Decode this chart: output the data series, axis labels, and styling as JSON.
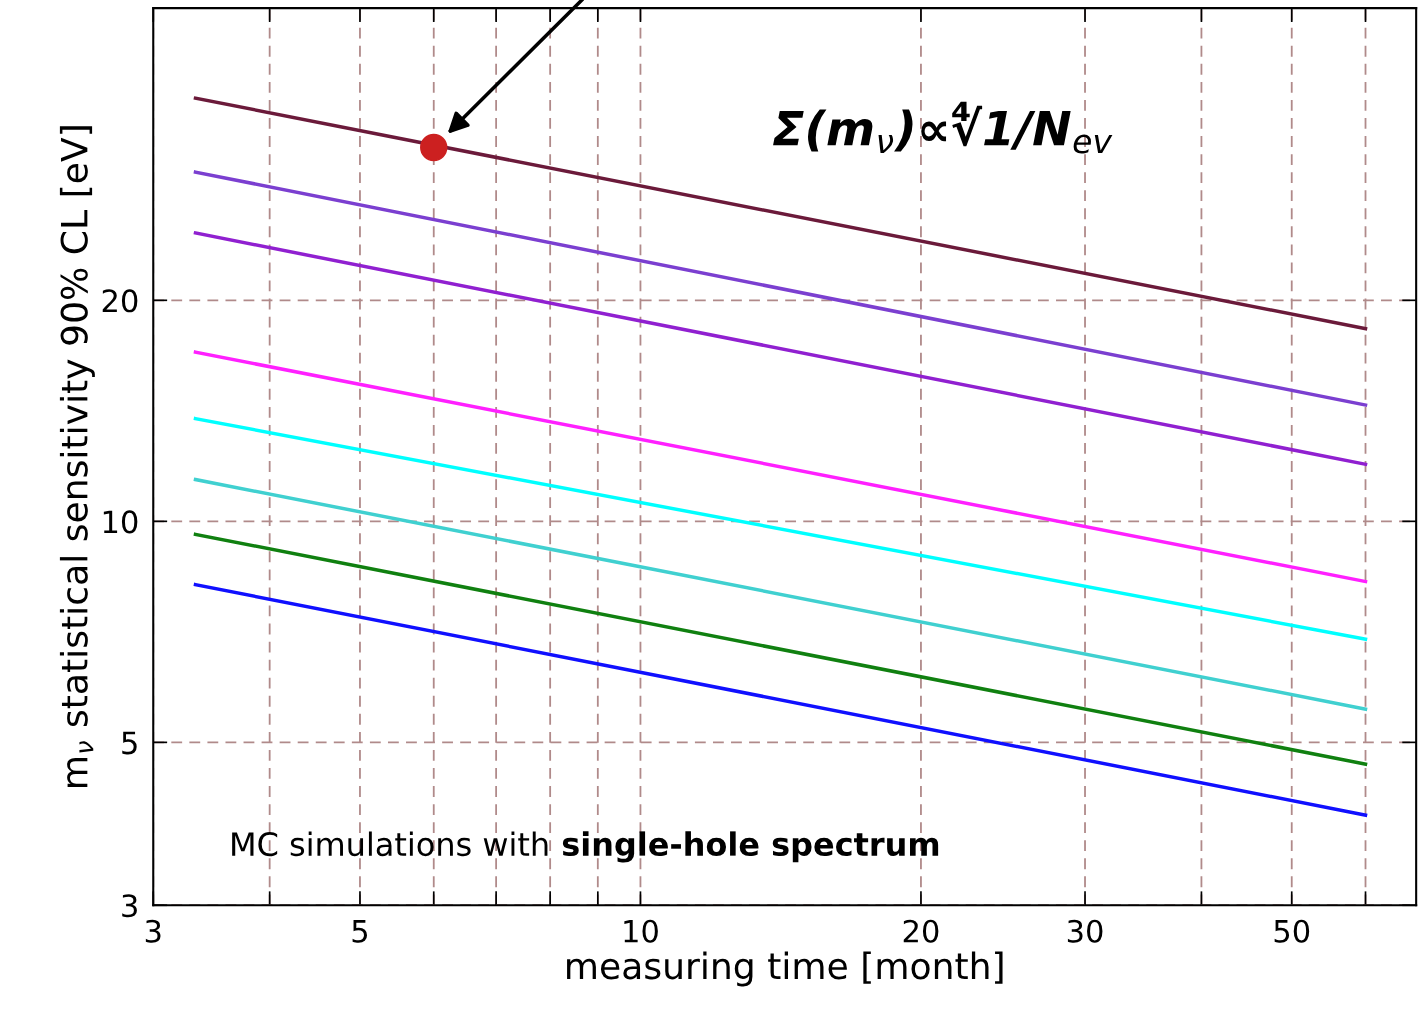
{
  "chart_data": {
    "type": "line",
    "xlabel": "measuring time [month]",
    "ylabel": "m$_{ν}$ statistical sensitivity 90% CL [eV]",
    "log": "xy",
    "grid": true,
    "line_style": "solid",
    "marker": "none",
    "xlim": [
      3,
      68
    ],
    "ylim": [
      3,
      50
    ],
    "xticks": [
      3,
      {
        "value": 4,
        "label": null
      },
      5,
      {
        "value": 6,
        "label": null
      },
      {
        "value": 7,
        "label": null
      },
      {
        "value": 8,
        "label": null
      },
      {
        "value": 9,
        "label": null
      },
      10,
      20,
      30,
      {
        "value": 40,
        "label": null
      },
      50,
      {
        "value": 60,
        "label": null
      }
    ],
    "yticks": [
      3,
      5,
      10,
      20
    ],
    "x": [
      3.33,
      60
    ],
    "series": [
      {
        "color": "#6b1a3a",
        "values": [
          37.7,
          18.3
        ]
      },
      {
        "color": "#7b3fd0",
        "values": [
          29.9,
          14.4
        ]
      },
      {
        "color": "#9020d0",
        "values": [
          24.7,
          11.96
        ]
      },
      {
        "color": "#ff20ff",
        "values": [
          17.0,
          8.28
        ]
      },
      {
        "color": "#00ffff",
        "values": [
          13.8,
          6.91
        ]
      },
      {
        "color": "#40d0d0",
        "values": [
          11.4,
          5.55
        ]
      },
      {
        "color": "#108010",
        "values": [
          9.6,
          4.67
        ]
      },
      {
        "color": "#1010ff",
        "values": [
          8.2,
          3.98
        ]
      },
      {
        "type": "scatter",
        "marker": "circle",
        "color": "#cc2020",
        "x": [
          6
        ],
        "values": [
          32.3
        ]
      }
    ],
    "annotations": [
      "Σ(m$_{ν}$)∝∜1/N$_{ev}$",
      "MC simulations with",
      "single-hole spectrum"
    ]
  }
}
